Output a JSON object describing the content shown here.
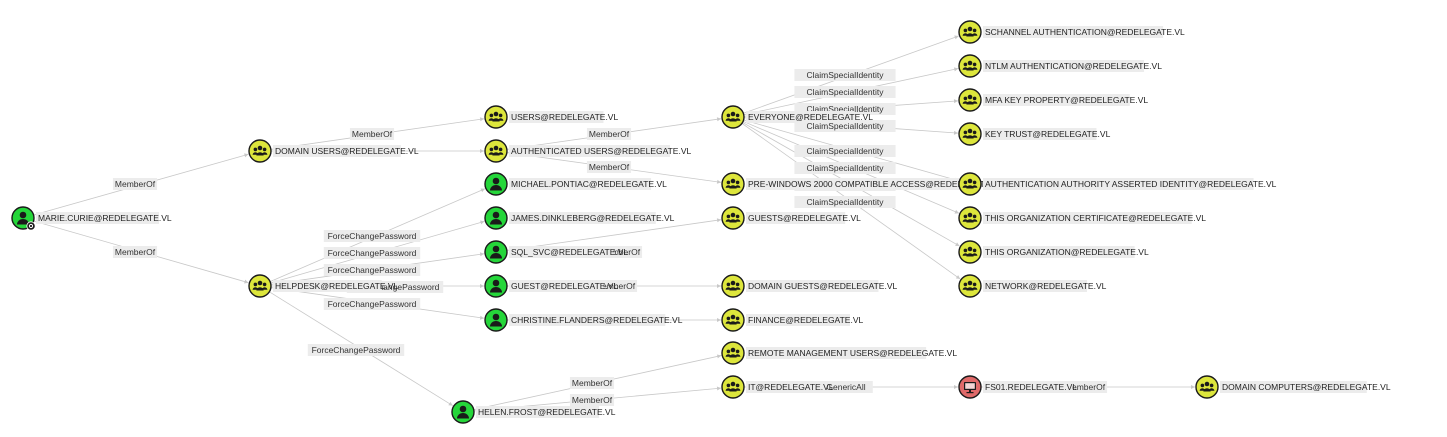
{
  "colors": {
    "group": "#dde63c",
    "user": "#25d63a",
    "computer": "#e06a6a",
    "edge": "#c8c8c8",
    "label_bg": "#ececec"
  },
  "nodes": [
    {
      "id": "marie",
      "type": "user",
      "icon": "user-icon",
      "label": "MARIE.CURIE@REDELEGATE.VL",
      "owned": true
    },
    {
      "id": "domainusers",
      "type": "group",
      "icon": "group-icon",
      "label": "DOMAIN USERS@REDELEGATE.VL"
    },
    {
      "id": "helpdesk",
      "type": "group",
      "icon": "group-icon",
      "label": "HELPDESK@REDELEGATE.VL"
    },
    {
      "id": "users",
      "type": "group",
      "icon": "group-icon",
      "label": "USERS@REDELEGATE.VL"
    },
    {
      "id": "authusers",
      "type": "group",
      "icon": "group-icon",
      "label": "AUTHENTICATED USERS@REDELEGATE.VL"
    },
    {
      "id": "michael",
      "type": "user",
      "icon": "user-icon",
      "label": "MICHAEL.PONTIAC@REDELEGATE.VL"
    },
    {
      "id": "james",
      "type": "user",
      "icon": "user-icon",
      "label": "JAMES.DINKLEBERG@REDELEGATE.VL"
    },
    {
      "id": "sqlsvc",
      "type": "user",
      "icon": "user-icon",
      "label": "SQL_SVC@REDELEGATE.VL"
    },
    {
      "id": "guest",
      "type": "user",
      "icon": "user-icon",
      "label": "GUEST@REDELEGATE.VL"
    },
    {
      "id": "christine",
      "type": "user",
      "icon": "user-icon",
      "label": "CHRISTINE.FLANDERS@REDELEGATE.VL"
    },
    {
      "id": "helen",
      "type": "user",
      "icon": "user-icon",
      "label": "HELEN.FROST@REDELEGATE.VL"
    },
    {
      "id": "everyone",
      "type": "group",
      "icon": "group-icon",
      "label": "EVERYONE@REDELEGATE.VL"
    },
    {
      "id": "prewin",
      "type": "group",
      "icon": "group-icon",
      "label": "PRE-WINDOWS 2000 COMPATIBLE ACCESS@REDELEGATE.VL"
    },
    {
      "id": "guests",
      "type": "group",
      "icon": "group-icon",
      "label": "GUESTS@REDELEGATE.VL"
    },
    {
      "id": "domainguests",
      "type": "group",
      "icon": "group-icon",
      "label": "DOMAIN GUESTS@REDELEGATE.VL"
    },
    {
      "id": "finance",
      "type": "group",
      "icon": "group-icon",
      "label": "FINANCE@REDELEGATE.VL"
    },
    {
      "id": "remotemgmt",
      "type": "group",
      "icon": "group-icon",
      "label": "REMOTE MANAGEMENT USERS@REDELEGATE.VL"
    },
    {
      "id": "it",
      "type": "group",
      "icon": "group-icon",
      "label": "IT@REDELEGATE.VL"
    },
    {
      "id": "schannel",
      "type": "group",
      "icon": "group-icon",
      "label": "SCHANNEL AUTHENTICATION@REDELEGATE.VL"
    },
    {
      "id": "ntlm",
      "type": "group",
      "icon": "group-icon",
      "label": "NTLM AUTHENTICATION@REDELEGATE.VL"
    },
    {
      "id": "mfa",
      "type": "group",
      "icon": "group-icon",
      "label": "MFA KEY PROPERTY@REDELEGATE.VL"
    },
    {
      "id": "keytrust",
      "type": "group",
      "icon": "group-icon",
      "label": "KEY TRUST@REDELEGATE.VL"
    },
    {
      "id": "authauth",
      "type": "group",
      "icon": "group-icon",
      "label": "AUTHENTICATION AUTHORITY ASSERTED IDENTITY@REDELEGATE.VL"
    },
    {
      "id": "thisorgcert",
      "type": "group",
      "icon": "group-icon",
      "label": "THIS ORGANIZATION CERTIFICATE@REDELEGATE.VL"
    },
    {
      "id": "thisorg",
      "type": "group",
      "icon": "group-icon",
      "label": "THIS ORGANIZATION@REDELEGATE.VL"
    },
    {
      "id": "network",
      "type": "group",
      "icon": "group-icon",
      "label": "NETWORK@REDELEGATE.VL"
    },
    {
      "id": "fs01",
      "type": "computer",
      "icon": "computer-icon",
      "label": "FS01.REDELEGATE.VL"
    },
    {
      "id": "domaincomputers",
      "type": "group",
      "icon": "group-icon",
      "label": "DOMAIN COMPUTERS@REDELEGATE.VL"
    }
  ],
  "edges": [
    {
      "from": "marie",
      "to": "domainusers",
      "label": "MemberOf"
    },
    {
      "from": "marie",
      "to": "helpdesk",
      "label": "MemberOf"
    },
    {
      "from": "domainusers",
      "to": "users",
      "label": "MemberOf"
    },
    {
      "from": "domainusers",
      "to": "authusers",
      "label": ""
    },
    {
      "from": "authusers",
      "to": "everyone",
      "label": "MemberOf"
    },
    {
      "from": "authusers",
      "to": "prewin",
      "label": "MemberOf"
    },
    {
      "from": "helpdesk",
      "to": "michael",
      "label": "ForceChangePassword"
    },
    {
      "from": "helpdesk",
      "to": "james",
      "label": "ForceChangePassword"
    },
    {
      "from": "helpdesk",
      "to": "sqlsvc",
      "label": "ForceChangePassword"
    },
    {
      "from": "helpdesk",
      "to": "guest",
      "label": "ForceChangePassword"
    },
    {
      "from": "helpdesk",
      "to": "christine",
      "label": "ForceChangePassword"
    },
    {
      "from": "helpdesk",
      "to": "helen",
      "label": "ForceChangePassword"
    },
    {
      "from": "sqlsvc",
      "to": "guests",
      "label": "MemberOf"
    },
    {
      "from": "guest",
      "to": "domainguests",
      "label": "MemberOf"
    },
    {
      "from": "christine",
      "to": "finance",
      "label": ""
    },
    {
      "from": "helen",
      "to": "remotemgmt",
      "label": "MemberOf"
    },
    {
      "from": "helen",
      "to": "it",
      "label": "MemberOf"
    },
    {
      "from": "it",
      "to": "fs01",
      "label": "GenericAll"
    },
    {
      "from": "fs01",
      "to": "domaincomputers",
      "label": "MemberOf"
    },
    {
      "from": "everyone",
      "to": "schannel",
      "label": "ClaimSpecialIdentity"
    },
    {
      "from": "everyone",
      "to": "ntlm",
      "label": "ClaimSpecialIdentity"
    },
    {
      "from": "everyone",
      "to": "mfa",
      "label": "ClaimSpecialIdentity"
    },
    {
      "from": "everyone",
      "to": "keytrust",
      "label": "ClaimSpecialIdentity"
    },
    {
      "from": "everyone",
      "to": "authauth",
      "label": "ClaimSpecialIdentity"
    },
    {
      "from": "everyone",
      "to": "thisorgcert",
      "label": "ClaimSpecialIdentity"
    },
    {
      "from": "everyone",
      "to": "thisorg",
      "label": "ClaimSpecialIdentity"
    },
    {
      "from": "everyone",
      "to": "network",
      "label": "ClaimSpecialIdentity"
    }
  ]
}
